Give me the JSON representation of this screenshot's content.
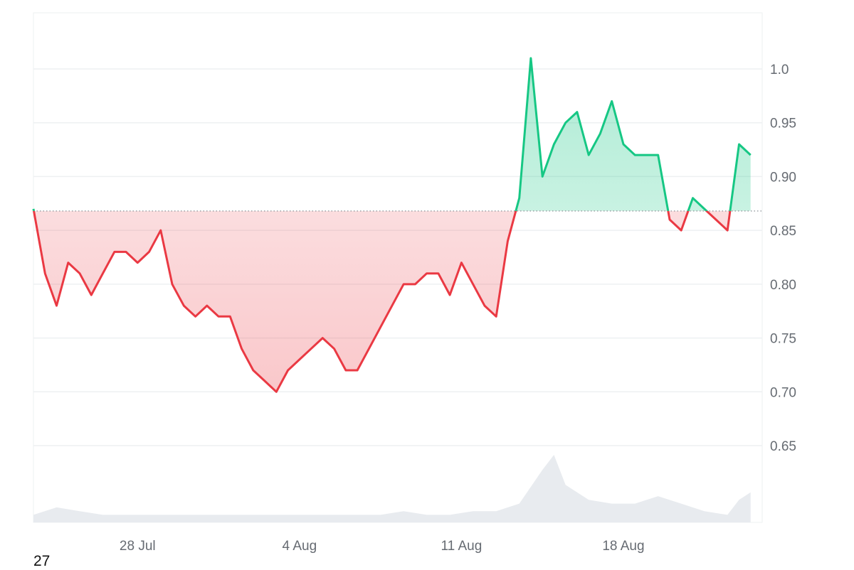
{
  "chart_data": {
    "type": "area",
    "baseline": 0.868,
    "ylim": [
      0.61,
      1.05
    ],
    "yticks": [
      1.0,
      0.95,
      0.9,
      0.85,
      0.8,
      0.75,
      0.7,
      0.65
    ],
    "ytick_labels": [
      "1.0",
      "0.95",
      "0.90",
      "0.85",
      "0.80",
      "0.75",
      "0.70",
      "0.65"
    ],
    "xlim": [
      0,
      31.5
    ],
    "xtick_labels": [
      "28 Jul",
      "4 Aug",
      "11 Aug",
      "18 Aug"
    ],
    "xtick_positions": [
      4.5,
      11.5,
      18.5,
      25.5
    ],
    "grid": true,
    "colors": {
      "above": "#16c784",
      "below": "#ea3943",
      "volume": "#e8ebef",
      "grid": "#eef0f2",
      "baseline": "#8a8f96"
    },
    "series": [
      {
        "x": [
          0,
          0.5,
          1.0,
          1.5,
          2.0,
          2.5,
          3.0,
          3.5,
          4.0,
          4.5,
          5.0,
          5.5,
          6.0,
          6.5,
          7.0,
          7.5,
          8.0,
          8.5,
          9.0,
          9.5,
          10.0,
          10.5,
          11.0,
          11.5,
          12.0,
          12.5,
          13.0,
          13.5,
          14.0,
          14.5,
          15.0,
          15.5,
          16.0,
          16.5,
          17.0,
          17.5,
          18.0,
          18.5,
          19.0,
          19.5,
          20.0,
          20.5,
          21.0,
          21.5,
          22.0,
          22.5,
          23.0,
          23.5,
          24.0,
          24.5,
          25.0,
          25.5,
          26.0,
          26.5,
          27.0,
          27.5,
          28.0,
          28.5,
          29.0,
          29.5,
          30.0,
          30.5,
          31.0
        ],
        "values": [
          0.87,
          0.81,
          0.78,
          0.82,
          0.81,
          0.79,
          0.81,
          0.83,
          0.83,
          0.82,
          0.83,
          0.85,
          0.8,
          0.78,
          0.77,
          0.78,
          0.77,
          0.77,
          0.74,
          0.72,
          0.71,
          0.7,
          0.72,
          0.73,
          0.74,
          0.75,
          0.74,
          0.72,
          0.72,
          0.74,
          0.76,
          0.78,
          0.8,
          0.8,
          0.81,
          0.81,
          0.79,
          0.82,
          0.8,
          0.78,
          0.77,
          0.84,
          0.88,
          1.01,
          0.9,
          0.93,
          0.95,
          0.96,
          0.92,
          0.94,
          0.97,
          0.93,
          0.92,
          0.92,
          0.92,
          0.86,
          0.85,
          0.88,
          0.87,
          0.86,
          0.85,
          0.93,
          0.92
        ]
      },
      {
        "x": [
          0,
          1,
          2,
          3,
          4,
          5,
          6,
          7,
          8,
          9,
          10,
          11,
          12,
          13,
          14,
          15,
          16,
          17,
          18,
          19,
          20,
          21,
          22,
          22.5,
          23,
          24,
          25,
          26,
          27,
          28,
          29,
          30,
          30.5,
          31
        ],
        "values": [
          2,
          4,
          3,
          2,
          2,
          2,
          2,
          2,
          2,
          2,
          2,
          2,
          2,
          2,
          2,
          2,
          3,
          2,
          2,
          3,
          3,
          5,
          14,
          18,
          10,
          6,
          5,
          5,
          7,
          5,
          3,
          2,
          6,
          8
        ]
      }
    ]
  },
  "corner_label": "27"
}
